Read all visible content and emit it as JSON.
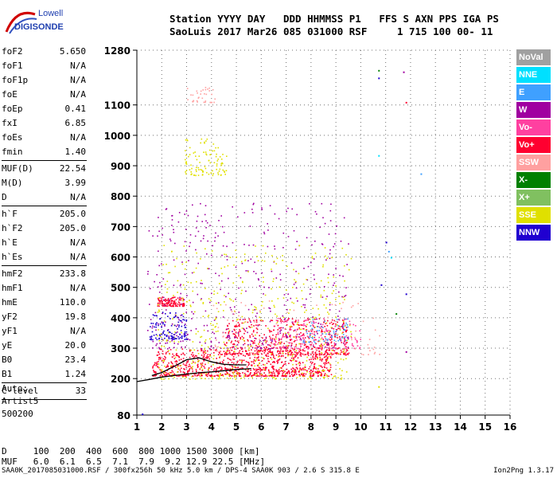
{
  "logo": {
    "line1": "Lowell",
    "line2": "DIGISONDE"
  },
  "header": {
    "row1": "Station YYYY DAY   DDD HHMMSS P1   FFS S AXN PPS IGA PS",
    "row2": "SaoLuis 2017 Mar26 085 031000 RSF     1 715 100 00- 11"
  },
  "params": [
    {
      "label": "foF2",
      "value": "5.650"
    },
    {
      "label": "foF1",
      "value": "N/A"
    },
    {
      "label": "foF1p",
      "value": "N/A"
    },
    {
      "label": "foE",
      "value": "N/A"
    },
    {
      "label": "foEp",
      "value": "0.41"
    },
    {
      "label": "fxI",
      "value": "6.85"
    },
    {
      "label": "foEs",
      "value": "N/A"
    },
    {
      "label": "fmin",
      "value": "1.40"
    },
    {
      "sep": true
    },
    {
      "label": "MUF(D)",
      "value": "22.54"
    },
    {
      "label": "M(D)",
      "value": "3.99"
    },
    {
      "label": "D",
      "value": "N/A"
    },
    {
      "sep": true
    },
    {
      "label": "h`F",
      "value": "205.0"
    },
    {
      "label": "h`F2",
      "value": "205.0"
    },
    {
      "label": "h`E",
      "value": "N/A"
    },
    {
      "label": "h`Es",
      "value": "N/A"
    },
    {
      "sep": true
    },
    {
      "label": "hmF2",
      "value": "233.8"
    },
    {
      "label": "hmF1",
      "value": "N/A"
    },
    {
      "label": "hmE",
      "value": "110.0"
    },
    {
      "label": "yF2",
      "value": "19.8"
    },
    {
      "label": "yF1",
      "value": "N/A"
    },
    {
      "label": "yE",
      "value": "20.0"
    },
    {
      "label": "B0",
      "value": "23.4"
    },
    {
      "label": "B1",
      "value": "1.24"
    },
    {
      "sep": true
    },
    {
      "label": "C-level",
      "value": "33"
    },
    {
      "sep": true
    }
  ],
  "auto": {
    "line1": "Auto:",
    "line2": "Artist5",
    "line3": "500200"
  },
  "legend": [
    {
      "label": "NoVal",
      "bg": "#a0a0a0",
      "fg": "#ffffff"
    },
    {
      "label": "NNE",
      "bg": "#00e0ff",
      "fg": "#ffffff"
    },
    {
      "label": "E",
      "bg": "#3fa0ff",
      "fg": "#ffffff"
    },
    {
      "label": "W",
      "bg": "#a000a0",
      "fg": "#ffffff"
    },
    {
      "label": "Vo-",
      "bg": "#ff40a0",
      "fg": "#ffffff"
    },
    {
      "label": "Vo+",
      "bg": "#ff0030",
      "fg": "#ffffff"
    },
    {
      "label": "SSW",
      "bg": "#ffa0a0",
      "fg": "#ffffff"
    },
    {
      "label": "X-",
      "bg": "#008000",
      "fg": "#ffffff"
    },
    {
      "label": "X+",
      "bg": "#80c060",
      "fg": "#ffffff"
    },
    {
      "label": "SSE",
      "bg": "#e0e000",
      "fg": "#ffffff"
    },
    {
      "label": "NNW",
      "bg": "#2000d0",
      "fg": "#ffffff"
    }
  ],
  "dmuf": {
    "drow": "D     100  200  400  600  800 1000 1500 3000 [km]",
    "mufrow": "MUF   6.0  6.1  6.5  7.1  7.9  9.2 12.9 22.5 [MHz]"
  },
  "footer": "SAA0K_2017085031000.RSF / 300fx256h 50 kHz 5.0 km / DPS-4 SAA0K 903 / 2.6 S 315.8 E",
  "version": "Ion2Png 1.3.17",
  "chart_data": {
    "type": "scatter",
    "xlim": [
      1,
      16
    ],
    "ylim": [
      80,
      1280
    ],
    "xticks": [
      1,
      2,
      3,
      4,
      5,
      6,
      7,
      8,
      9,
      10,
      11,
      12,
      13,
      14,
      15,
      16
    ],
    "yticks": [
      80,
      200,
      300,
      400,
      500,
      600,
      700,
      800,
      900,
      1000,
      1100,
      1280
    ],
    "grid": true,
    "trace_profile": {
      "x": [
        1.0,
        1.5,
        2.0,
        2.5,
        3.0,
        3.5,
        4.0,
        4.5,
        5.0,
        5.6
      ],
      "y": [
        190,
        197,
        205,
        210,
        215,
        219,
        222,
        226,
        230,
        233
      ]
    },
    "trace_virtual": {
      "x": [
        1.6,
        2.0,
        2.5,
        3.0,
        3.5,
        4.0,
        4.5,
        5.0,
        5.4
      ],
      "y": [
        210,
        220,
        240,
        262,
        268,
        255,
        247,
        245,
        245
      ]
    },
    "echo_regions": [
      {
        "series": "Vo+",
        "x": [
          1.6,
          8.8
        ],
        "y": [
          210,
          300
        ],
        "density": 900
      },
      {
        "series": "Vo+",
        "x": [
          4.5,
          9.5
        ],
        "y": [
          280,
          400
        ],
        "density": 500
      },
      {
        "series": "Vo+",
        "x": [
          1.8,
          2.9
        ],
        "y": [
          440,
          470
        ],
        "density": 120
      },
      {
        "series": "W",
        "x": [
          1.4,
          9.5
        ],
        "y": [
          300,
          780
        ],
        "density": 450
      },
      {
        "series": "SSE",
        "x": [
          1.8,
          9.6
        ],
        "y": [
          200,
          640
        ],
        "density": 500
      },
      {
        "series": "SSE",
        "x": [
          2.9,
          4.6
        ],
        "y": [
          870,
          990
        ],
        "density": 100
      },
      {
        "series": "SSW",
        "x": [
          3.0,
          4.2
        ],
        "y": [
          1110,
          1160
        ],
        "density": 35
      },
      {
        "series": "NNW",
        "x": [
          1.5,
          3.0
        ],
        "y": [
          330,
          420
        ],
        "density": 120
      },
      {
        "series": "Vo-",
        "x": [
          6.5,
          10.0
        ],
        "y": [
          300,
          400
        ],
        "density": 150
      },
      {
        "series": "E",
        "x": [
          7.5,
          9.5
        ],
        "y": [
          320,
          400
        ],
        "density": 60
      },
      {
        "series": "SSW",
        "x": [
          4.0,
          10.8
        ],
        "y": [
          280,
          460
        ],
        "density": 90
      }
    ],
    "isolated_points": [
      {
        "series": "X-",
        "x": 10.7,
        "y": 1215
      },
      {
        "series": "NNW",
        "x": 10.7,
        "y": 1190
      },
      {
        "series": "W",
        "x": 11.7,
        "y": 1210
      },
      {
        "series": "Vo+",
        "x": 11.8,
        "y": 1110
      },
      {
        "series": "NNE",
        "x": 10.7,
        "y": 935
      },
      {
        "series": "E",
        "x": 12.4,
        "y": 875
      },
      {
        "series": "NNW",
        "x": 11.0,
        "y": 650
      },
      {
        "series": "E",
        "x": 11.1,
        "y": 620
      },
      {
        "series": "NNE",
        "x": 11.2,
        "y": 600
      },
      {
        "series": "NNW",
        "x": 10.8,
        "y": 510
      },
      {
        "series": "NNW",
        "x": 11.8,
        "y": 480
      },
      {
        "series": "X-",
        "x": 11.4,
        "y": 415
      },
      {
        "series": "W",
        "x": 11.8,
        "y": 290
      },
      {
        "series": "SSE",
        "x": 10.7,
        "y": 175
      },
      {
        "series": "NNW",
        "x": 1.2,
        "y": 85
      }
    ]
  }
}
